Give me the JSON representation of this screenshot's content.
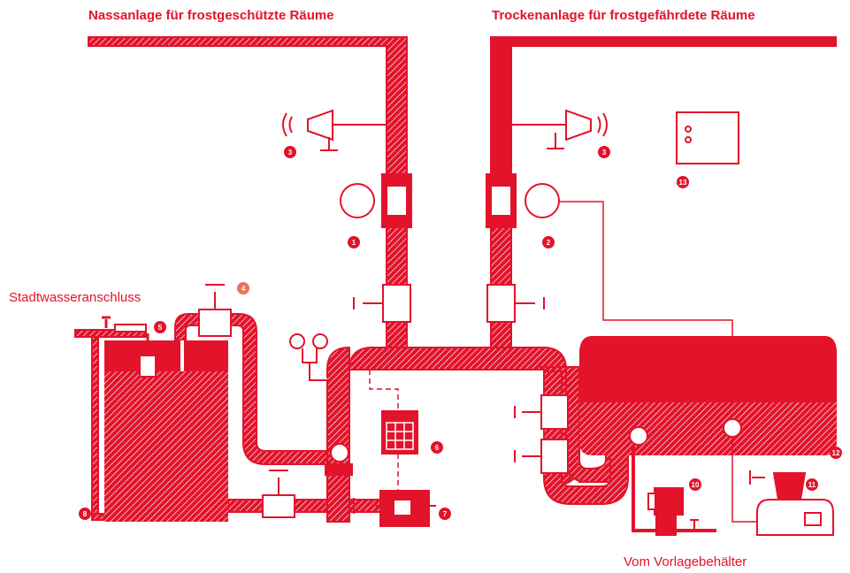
{
  "titles": {
    "wet": "Nassanlage für frostgeschützte Räume",
    "dry": "Trockenanlage für frostgefährdete Räume"
  },
  "labels": {
    "city_water": "Stadtwasseranschluss",
    "supply_tank": "Vom Vorlagebehälter"
  },
  "markers": [
    3,
    3,
    1,
    2,
    13,
    4,
    5,
    6,
    7,
    8,
    10,
    11,
    12
  ]
}
